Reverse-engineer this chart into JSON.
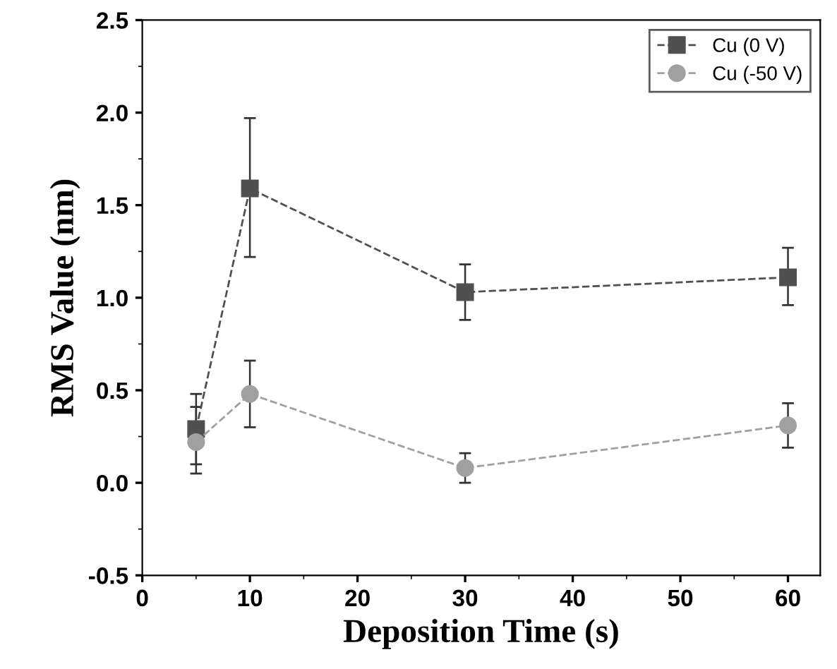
{
  "chart_data": {
    "type": "line",
    "xlabel": "Deposition Time (s)",
    "ylabel": "RMS Value (nm)",
    "x": [
      5,
      10,
      30,
      60
    ],
    "series": [
      {
        "name": "Cu (0 V)",
        "color": "#505050",
        "marker": "square",
        "values": [
          0.29,
          1.59,
          1.03,
          1.11
        ],
        "errors": [
          [
            0.1,
            0.48
          ],
          [
            1.22,
            1.97
          ],
          [
            0.88,
            1.18
          ],
          [
            0.96,
            1.27
          ]
        ]
      },
      {
        "name": "Cu (-50 V)",
        "color": "#a0a0a0",
        "marker": "circle",
        "values": [
          0.22,
          0.48,
          0.08,
          0.31
        ],
        "errors": [
          [
            0.05,
            0.41
          ],
          [
            0.3,
            0.66
          ],
          [
            0.0,
            0.16
          ],
          [
            0.19,
            0.43
          ]
        ]
      }
    ],
    "xlim": [
      0,
      63
    ],
    "xticks": [
      0,
      10,
      20,
      30,
      40,
      50,
      60
    ],
    "ylim": [
      -0.5,
      2.5
    ],
    "yticks": [
      -0.5,
      {
        "value": 0,
        "label": "0.0"
      },
      0.5,
      {
        "value": 1,
        "label": "1.0"
      },
      1.5,
      {
        "value": 2,
        "label": "2.0"
      },
      2.5
    ],
    "line_style": "dashed",
    "grid": false,
    "legend": "top right"
  }
}
